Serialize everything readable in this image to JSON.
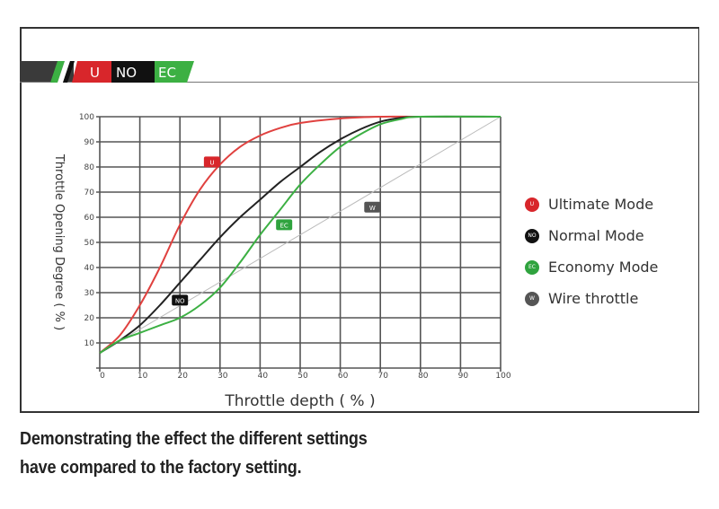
{
  "header": {
    "logo_segments": [
      {
        "label": "U",
        "color": "#d8262b"
      },
      {
        "label": "NO",
        "color": "#111111"
      },
      {
        "label": "EC",
        "color": "#2fa33e"
      }
    ]
  },
  "chart_data": {
    "type": "line",
    "xlabel": "Throttle depth ( % )",
    "ylabel": "Throttle Opening Degree ( % )",
    "xlim": [
      0,
      100
    ],
    "ylim": [
      0,
      100
    ],
    "xticks": [
      "0",
      "10",
      "20",
      "30",
      "40",
      "50",
      "60",
      "70",
      "80",
      "90",
      "100"
    ],
    "yticks": [
      "10",
      "20",
      "30",
      "40",
      "50",
      "60",
      "70",
      "80",
      "90",
      "100"
    ],
    "grid": true,
    "legend_position": "right",
    "series": [
      {
        "name": "Ultimate Mode",
        "badge": "U",
        "color": "#e0413f",
        "badge_at": [
          28,
          82
        ],
        "x": [
          0,
          5,
          10,
          15,
          20,
          25,
          30,
          35,
          40,
          45,
          50,
          60,
          70,
          80,
          100
        ],
        "y": [
          6,
          13,
          25,
          40,
          57,
          71,
          81,
          88,
          92.5,
          95.5,
          97.5,
          99.3,
          100,
          100,
          100
        ]
      },
      {
        "name": "Normal Mode",
        "badge": "NO",
        "color": "#222222",
        "badge_at": [
          20,
          27
        ],
        "x": [
          0,
          5,
          10,
          15,
          20,
          25,
          30,
          35,
          40,
          45,
          50,
          55,
          60,
          65,
          70,
          75,
          80,
          100
        ],
        "y": [
          6,
          11,
          17,
          25,
          34,
          43,
          52,
          60,
          67,
          74,
          80,
          86,
          91,
          95,
          98,
          99.5,
          100,
          100
        ]
      },
      {
        "name": "Economy Mode",
        "badge": "EC",
        "color": "#3cb043",
        "badge_at": [
          46,
          57
        ],
        "x": [
          0,
          5,
          10,
          15,
          20,
          25,
          30,
          35,
          40,
          45,
          50,
          55,
          60,
          65,
          70,
          75,
          80,
          100
        ],
        "y": [
          6,
          11,
          14,
          17,
          20,
          25,
          32,
          42,
          53,
          63,
          73,
          81,
          88,
          93,
          97,
          99,
          100,
          100
        ]
      },
      {
        "name": "Wire throttle",
        "badge": "W",
        "color": "#bbbbbb",
        "badge_at": [
          68,
          64
        ],
        "x": [
          0,
          100
        ],
        "y": [
          6,
          100
        ]
      }
    ]
  },
  "legend_dot_colors": [
    "#d8262b",
    "#111111",
    "#2fa33e",
    "#555555"
  ],
  "caption": {
    "line1": "Demonstrating the effect the different settings",
    "line2": "have compared to the factory setting."
  }
}
